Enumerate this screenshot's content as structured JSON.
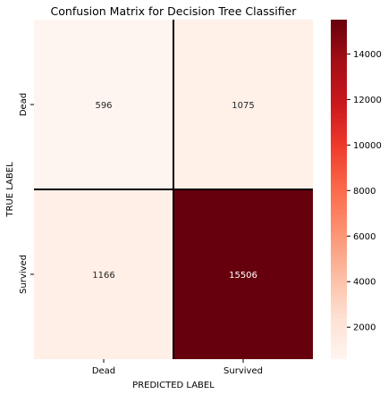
{
  "chart_data": {
    "type": "heatmap",
    "title": "Confusion Matrix for Decision Tree Classifier",
    "xlabel": "PREDICTED LABEL",
    "ylabel": "TRUE LABEL",
    "x_categories": [
      "Dead",
      "Survived"
    ],
    "y_categories": [
      "Dead",
      "Survived"
    ],
    "values": [
      [
        596,
        1075
      ],
      [
        1166,
        15506
      ]
    ],
    "colorbar": {
      "colormap": "Reds",
      "range": [
        596,
        15506
      ],
      "ticks": [
        "2000",
        "4000",
        "6000",
        "8000",
        "10000",
        "12000",
        "14000"
      ]
    },
    "grid": true
  }
}
